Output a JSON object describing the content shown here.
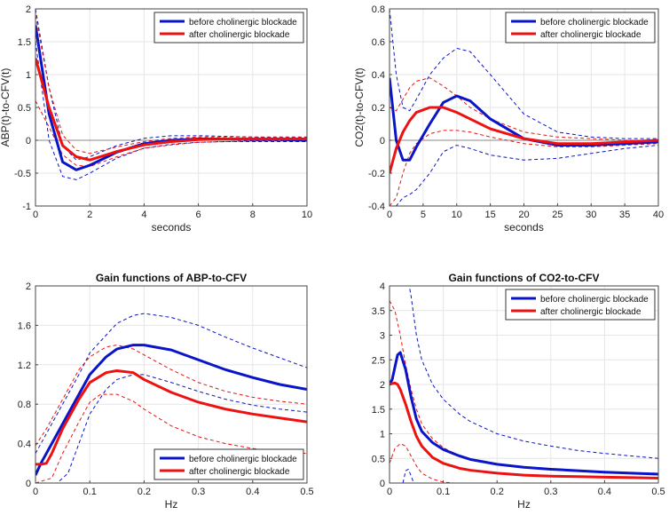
{
  "colors": {
    "before": "#0a14c8",
    "after": "#ee1111",
    "axis": "#444444",
    "grid": "#e6e6e6",
    "zero": "#8a8a8a"
  },
  "chart_data": [
    {
      "id": "abp-irf",
      "type": "line",
      "title": "",
      "xlabel": "seconds",
      "ylabel": "ABP(t)-to-CFV(t)",
      "xlim": [
        0,
        10
      ],
      "ylim": [
        -1,
        2
      ],
      "xticks": [
        0,
        2,
        4,
        6,
        8,
        10
      ],
      "yticks": [
        -1,
        -0.5,
        0,
        0.5,
        1,
        1.5,
        2
      ],
      "ytick_labels": [
        "-1",
        "-0.5",
        "0",
        "0.5",
        "1",
        "1.5",
        "2"
      ],
      "zero_line": true,
      "legend": {
        "position": "top-right",
        "entries": [
          "before cholinergic blockade",
          "after cholinergic blockade"
        ]
      },
      "series": [
        {
          "name": "before cholinergic blockade",
          "color": "before",
          "style": "solid",
          "x": [
            0,
            0.5,
            1,
            1.5,
            2,
            3,
            4,
            5,
            6,
            7,
            8,
            9,
            10
          ],
          "y": [
            1.75,
            0.4,
            -0.33,
            -0.45,
            -0.38,
            -0.18,
            -0.05,
            0.0,
            0.02,
            0.02,
            0.01,
            0.01,
            0.0
          ]
        },
        {
          "name": "after cholinergic blockade",
          "color": "after",
          "style": "solid",
          "x": [
            0,
            0.5,
            1,
            1.5,
            2,
            3,
            4,
            5,
            6,
            7,
            8,
            9,
            10
          ],
          "y": [
            1.25,
            0.5,
            -0.08,
            -0.25,
            -0.3,
            -0.17,
            -0.07,
            -0.02,
            0.01,
            0.02,
            0.02,
            0.02,
            0.02
          ]
        },
        {
          "name": "before upper bound",
          "color": "before",
          "style": "dashed",
          "x": [
            0,
            0.5,
            1,
            1.5,
            2,
            3,
            4,
            5,
            6,
            7,
            8,
            9,
            10
          ],
          "y": [
            2.0,
            0.8,
            -0.08,
            -0.3,
            -0.25,
            -0.08,
            0.03,
            0.07,
            0.07,
            0.06,
            0.05,
            0.04,
            0.04
          ]
        },
        {
          "name": "before lower bound",
          "color": "before",
          "style": "dashed",
          "x": [
            0,
            0.5,
            1,
            1.5,
            2,
            3,
            4,
            5,
            6,
            7,
            8,
            9,
            10
          ],
          "y": [
            1.5,
            0.0,
            -0.55,
            -0.6,
            -0.5,
            -0.27,
            -0.12,
            -0.06,
            -0.03,
            -0.02,
            -0.02,
            -0.02,
            -0.02
          ]
        },
        {
          "name": "after upper bound",
          "color": "after",
          "style": "dashed",
          "x": [
            0,
            0.5,
            1,
            1.5,
            2,
            3,
            4,
            5,
            6,
            7,
            8,
            9,
            10
          ],
          "y": [
            1.9,
            0.8,
            0.08,
            -0.15,
            -0.2,
            -0.1,
            -0.02,
            0.03,
            0.05,
            0.05,
            0.05,
            0.05,
            0.05
          ]
        },
        {
          "name": "after lower bound",
          "color": "after",
          "style": "dashed",
          "x": [
            0,
            0.5,
            1,
            1.5,
            2,
            3,
            4,
            5,
            6,
            7,
            8,
            9,
            10
          ],
          "y": [
            0.6,
            0.2,
            -0.22,
            -0.38,
            -0.4,
            -0.25,
            -0.12,
            -0.07,
            -0.03,
            -0.02,
            -0.01,
            -0.01,
            -0.01
          ]
        }
      ]
    },
    {
      "id": "co2-irf",
      "type": "line",
      "title": "",
      "xlabel": "seconds",
      "ylabel": "CO2(t)-to-CFV(t)",
      "xlim": [
        0,
        40
      ],
      "ylim": [
        -0.4,
        0.8
      ],
      "xticks": [
        0,
        5,
        10,
        15,
        20,
        25,
        30,
        35,
        40
      ],
      "yticks": [
        -0.4,
        -0.2,
        0,
        0.2,
        0.4,
        0.6,
        0.8
      ],
      "ytick_labels": [
        "-0.4",
        "-0.2",
        "0",
        "0.2",
        "0.4",
        "0.6",
        "0.8"
      ],
      "zero_line": true,
      "legend": {
        "position": "top-right",
        "entries": [
          "before cholinergic blockade",
          "after cholinergic blockade"
        ]
      },
      "series": [
        {
          "name": "before cholinergic blockade",
          "color": "before",
          "style": "solid",
          "x": [
            0,
            1,
            2,
            3,
            4,
            6,
            8,
            10,
            12,
            15,
            20,
            25,
            30,
            35,
            40
          ],
          "y": [
            0.38,
            0.0,
            -0.12,
            -0.12,
            -0.04,
            0.1,
            0.23,
            0.27,
            0.24,
            0.13,
            0.01,
            -0.03,
            -0.03,
            -0.02,
            -0.01
          ]
        },
        {
          "name": "after cholinergic blockade",
          "color": "after",
          "style": "solid",
          "x": [
            0,
            1,
            2,
            3,
            4,
            6,
            8,
            10,
            12,
            15,
            20,
            25,
            30,
            35,
            40
          ],
          "y": [
            -0.2,
            -0.05,
            0.05,
            0.12,
            0.17,
            0.2,
            0.2,
            0.17,
            0.13,
            0.07,
            0.01,
            -0.02,
            -0.02,
            -0.01,
            0.0
          ]
        },
        {
          "name": "before upper bound",
          "color": "before",
          "style": "dashed",
          "x": [
            0,
            1,
            2,
            3,
            4,
            6,
            8,
            10,
            12,
            15,
            20,
            25,
            30,
            35,
            40
          ],
          "y": [
            0.8,
            0.4,
            0.2,
            0.18,
            0.25,
            0.4,
            0.5,
            0.56,
            0.54,
            0.4,
            0.16,
            0.05,
            0.02,
            0.01,
            0.01
          ]
        },
        {
          "name": "before lower bound",
          "color": "before",
          "style": "dashed",
          "x": [
            0,
            1,
            2,
            3,
            4,
            6,
            8,
            10,
            12,
            15,
            20,
            25,
            30,
            35,
            40
          ],
          "y": [
            -0.4,
            -0.4,
            -0.35,
            -0.33,
            -0.3,
            -0.2,
            -0.07,
            -0.03,
            -0.05,
            -0.09,
            -0.12,
            -0.11,
            -0.08,
            -0.05,
            -0.03
          ]
        },
        {
          "name": "after upper bound",
          "color": "after",
          "style": "dashed",
          "x": [
            0,
            1,
            2,
            3,
            4,
            6,
            8,
            10,
            12,
            15,
            20,
            25,
            30,
            35,
            40
          ],
          "y": [
            0.2,
            0.18,
            0.25,
            0.32,
            0.36,
            0.38,
            0.33,
            0.27,
            0.2,
            0.13,
            0.05,
            0.02,
            0.01,
            0.0,
            0.0
          ]
        },
        {
          "name": "after lower bound",
          "color": "after",
          "style": "dashed",
          "x": [
            0,
            1,
            2,
            3,
            4,
            6,
            8,
            10,
            12,
            15,
            20,
            25,
            30,
            35,
            40
          ],
          "y": [
            -0.4,
            -0.35,
            -0.2,
            -0.08,
            -0.02,
            0.04,
            0.06,
            0.06,
            0.05,
            0.02,
            -0.02,
            -0.04,
            -0.04,
            -0.03,
            -0.02
          ]
        }
      ]
    },
    {
      "id": "abp-gain",
      "type": "line",
      "title": "Gain functions of ABP-to-CFV",
      "xlabel": "Hz",
      "ylabel": "",
      "xlim": [
        0,
        0.5
      ],
      "ylim": [
        0,
        2
      ],
      "xticks": [
        0,
        0.1,
        0.2,
        0.3,
        0.4,
        0.5
      ],
      "yticks": [
        0,
        0.4,
        0.8,
        1.2,
        1.6,
        2
      ],
      "ytick_labels": [
        "0",
        "0.4",
        "0.8",
        "1.2",
        "1.6",
        "2"
      ],
      "zero_line": false,
      "legend": {
        "position": "bottom-right",
        "entries": [
          "before cholinergic blockade",
          "after cholinergic blockade"
        ]
      },
      "series": [
        {
          "name": "before cholinergic blockade",
          "color": "before",
          "style": "solid",
          "x": [
            0,
            0.01,
            0.03,
            0.05,
            0.08,
            0.1,
            0.13,
            0.15,
            0.18,
            0.2,
            0.25,
            0.3,
            0.35,
            0.4,
            0.45,
            0.5
          ],
          "y": [
            0.08,
            0.2,
            0.4,
            0.6,
            0.9,
            1.1,
            1.28,
            1.36,
            1.4,
            1.4,
            1.35,
            1.25,
            1.15,
            1.07,
            1.0,
            0.95
          ]
        },
        {
          "name": "after cholinergic blockade",
          "color": "after",
          "style": "solid",
          "x": [
            0,
            0.01,
            0.02,
            0.03,
            0.05,
            0.08,
            0.1,
            0.13,
            0.15,
            0.18,
            0.2,
            0.25,
            0.3,
            0.35,
            0.4,
            0.45,
            0.5
          ],
          "y": [
            0.19,
            0.19,
            0.2,
            0.3,
            0.55,
            0.85,
            1.02,
            1.12,
            1.14,
            1.12,
            1.05,
            0.92,
            0.82,
            0.75,
            0.7,
            0.66,
            0.62
          ]
        },
        {
          "name": "before upper bound",
          "color": "before",
          "style": "dashed",
          "x": [
            0,
            0.03,
            0.05,
            0.08,
            0.1,
            0.13,
            0.15,
            0.18,
            0.2,
            0.25,
            0.3,
            0.35,
            0.4,
            0.45,
            0.5
          ],
          "y": [
            0.3,
            0.6,
            0.8,
            1.1,
            1.32,
            1.5,
            1.62,
            1.7,
            1.72,
            1.68,
            1.6,
            1.48,
            1.37,
            1.27,
            1.17
          ]
        },
        {
          "name": "before lower bound",
          "color": "before",
          "style": "dashed",
          "x": [
            0,
            0.04,
            0.06,
            0.08,
            0.1,
            0.13,
            0.15,
            0.18,
            0.2,
            0.25,
            0.3,
            0.35,
            0.4,
            0.45,
            0.5
          ],
          "y": [
            0.0,
            0.0,
            0.1,
            0.4,
            0.7,
            0.95,
            1.05,
            1.1,
            1.1,
            1.02,
            0.93,
            0.85,
            0.79,
            0.75,
            0.72
          ]
        },
        {
          "name": "after upper bound",
          "color": "after",
          "style": "dashed",
          "x": [
            0,
            0.02,
            0.04,
            0.06,
            0.08,
            0.1,
            0.13,
            0.15,
            0.18,
            0.2,
            0.25,
            0.3,
            0.35,
            0.4,
            0.45,
            0.5
          ],
          "y": [
            0.38,
            0.55,
            0.75,
            0.95,
            1.15,
            1.28,
            1.38,
            1.4,
            1.36,
            1.3,
            1.15,
            1.02,
            0.93,
            0.87,
            0.83,
            0.8
          ]
        },
        {
          "name": "after lower bound",
          "color": "after",
          "style": "dashed",
          "x": [
            0,
            0.03,
            0.05,
            0.08,
            0.1,
            0.12,
            0.15,
            0.18,
            0.2,
            0.25,
            0.3,
            0.35,
            0.4,
            0.45,
            0.5
          ],
          "y": [
            0.0,
            0.05,
            0.3,
            0.62,
            0.82,
            0.9,
            0.9,
            0.83,
            0.75,
            0.58,
            0.47,
            0.4,
            0.35,
            0.32,
            0.3
          ]
        }
      ]
    },
    {
      "id": "co2-gain",
      "type": "line",
      "title": "Gain functions of CO2-to-CFV",
      "xlabel": "Hz",
      "ylabel": "",
      "xlim": [
        0,
        0.5
      ],
      "ylim": [
        0,
        4
      ],
      "xticks": [
        0,
        0.1,
        0.2,
        0.3,
        0.4,
        0.5
      ],
      "yticks": [
        0,
        0.5,
        1,
        1.5,
        2,
        2.5,
        3,
        3.5,
        4
      ],
      "ytick_labels": [
        "0",
        "0.5",
        "1",
        "1.5",
        "2",
        "2.5",
        "3",
        "3.5",
        "4"
      ],
      "zero_line": false,
      "legend": {
        "position": "top-right",
        "entries": [
          "before cholinergic blockade",
          "after cholinergic blockade"
        ]
      },
      "series": [
        {
          "name": "before cholinergic blockade",
          "color": "before",
          "style": "solid",
          "x": [
            0,
            0.005,
            0.01,
            0.015,
            0.02,
            0.03,
            0.04,
            0.05,
            0.06,
            0.08,
            0.1,
            0.13,
            0.15,
            0.2,
            0.25,
            0.3,
            0.35,
            0.4,
            0.45,
            0.5
          ],
          "y": [
            2.0,
            2.1,
            2.35,
            2.6,
            2.65,
            2.3,
            1.75,
            1.3,
            1.05,
            0.82,
            0.68,
            0.55,
            0.48,
            0.38,
            0.32,
            0.28,
            0.25,
            0.22,
            0.2,
            0.18
          ]
        },
        {
          "name": "after cholinergic blockade",
          "color": "after",
          "style": "solid",
          "x": [
            0,
            0.005,
            0.01,
            0.015,
            0.02,
            0.03,
            0.04,
            0.05,
            0.06,
            0.08,
            0.1,
            0.13,
            0.15,
            0.2,
            0.25,
            0.3,
            0.35,
            0.4,
            0.45,
            0.5
          ],
          "y": [
            2.0,
            2.02,
            2.03,
            2.0,
            1.9,
            1.6,
            1.25,
            0.95,
            0.75,
            0.52,
            0.4,
            0.3,
            0.26,
            0.2,
            0.16,
            0.14,
            0.13,
            0.12,
            0.11,
            0.1
          ]
        },
        {
          "name": "before upper bound",
          "color": "before",
          "style": "dashed",
          "x": [
            0.02,
            0.025,
            0.03,
            0.04,
            0.05,
            0.06,
            0.08,
            0.1,
            0.13,
            0.15,
            0.2,
            0.25,
            0.3,
            0.35,
            0.4,
            0.45,
            0.5
          ],
          "y": [
            4.0,
            4.2,
            4.4,
            3.8,
            3.0,
            2.5,
            2.0,
            1.7,
            1.4,
            1.25,
            1.0,
            0.85,
            0.75,
            0.66,
            0.6,
            0.55,
            0.5
          ]
        },
        {
          "name": "before lower bound",
          "color": "before",
          "style": "dashed",
          "x": [
            0.025,
            0.03,
            0.035,
            0.04,
            0.045
          ],
          "y": [
            0.0,
            0.25,
            0.28,
            0.15,
            0.0
          ]
        },
        {
          "name": "after upper bound",
          "color": "after",
          "style": "dashed",
          "x": [
            0,
            0.01,
            0.02,
            0.03,
            0.04,
            0.05,
            0.06,
            0.08,
            0.1,
            0.13,
            0.15,
            0.2,
            0.25,
            0.3,
            0.35,
            0.4,
            0.45,
            0.5
          ],
          "y": [
            3.7,
            3.5,
            3.0,
            2.4,
            1.9,
            1.5,
            1.2,
            0.9,
            0.72,
            0.55,
            0.48,
            0.38,
            0.32,
            0.28,
            0.25,
            0.22,
            0.21,
            0.2
          ]
        },
        {
          "name": "after lower bound",
          "color": "after",
          "style": "dashed",
          "x": [
            0,
            0.01,
            0.02,
            0.03,
            0.04,
            0.05,
            0.06,
            0.08,
            0.1,
            0.12
          ],
          "y": [
            0.4,
            0.7,
            0.8,
            0.75,
            0.55,
            0.35,
            0.2,
            0.08,
            0.02,
            0.0
          ]
        }
      ]
    }
  ]
}
